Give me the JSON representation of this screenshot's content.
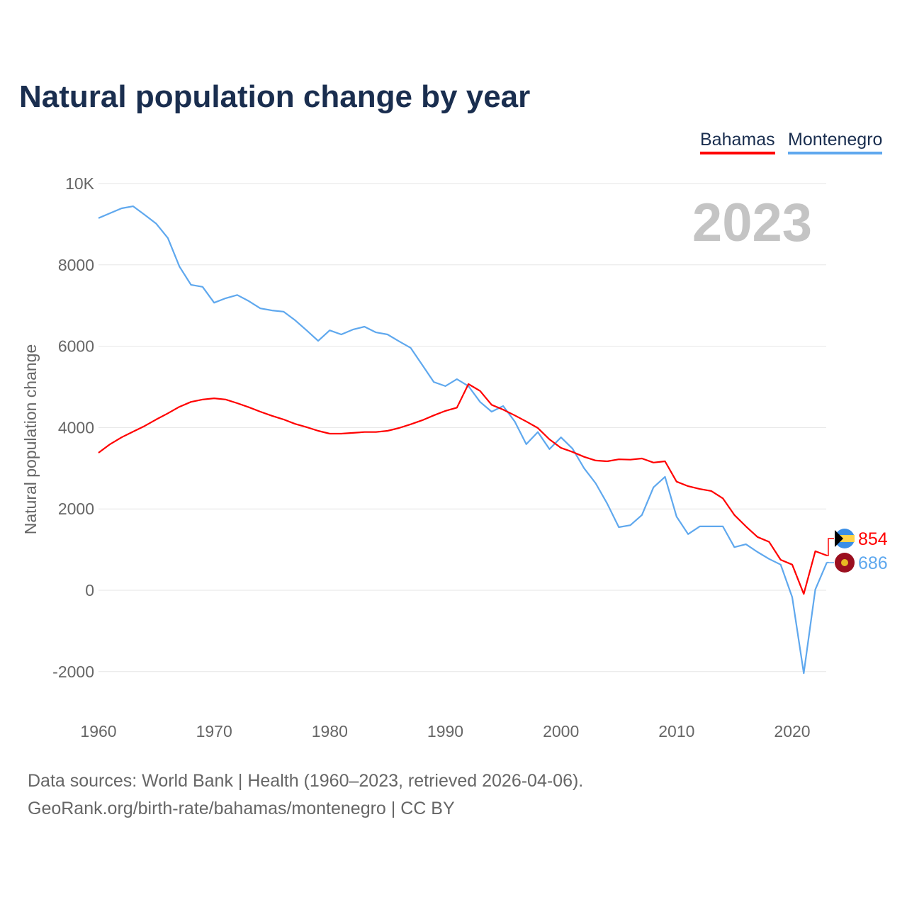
{
  "title": "Natural population change by year",
  "legend": [
    {
      "name": "Bahamas",
      "color": "#ff0000"
    },
    {
      "name": "Montenegro",
      "color": "#5fa8ee"
    }
  ],
  "sources": {
    "line1": "Data sources: World Bank | Health (1960–2023, retrieved 2026-04-06).",
    "line2": "GeoRank.org/birth-rate/bahamas/montenegro | CC BY"
  },
  "chart_data": {
    "type": "line",
    "title": "Natural population change by year",
    "year_label": "2023",
    "xlabel": "",
    "ylabel": "Natural population change",
    "xlim": [
      1960,
      2023
    ],
    "ylim": [
      -2000,
      10000
    ],
    "x_ticks": [
      "1960",
      "1970",
      "1980",
      "1990",
      "2000",
      "2010",
      "2020"
    ],
    "y_ticks": [
      {
        "v": -2000,
        "label": "-2000"
      },
      {
        "v": 0,
        "label": "0"
      },
      {
        "v": 2000,
        "label": "2000"
      },
      {
        "v": 4000,
        "label": "4000"
      },
      {
        "v": 6000,
        "label": "6000"
      },
      {
        "v": 8000,
        "label": "8000"
      },
      {
        "v": 10000,
        "label": "10K"
      }
    ],
    "grid": true,
    "legend_position": "top-right",
    "x_start": 1960,
    "series": [
      {
        "name": "Bahamas",
        "color": "#ff0000",
        "end_label": "854",
        "values": [
          3380,
          3590,
          3760,
          3900,
          4040,
          4200,
          4350,
          4510,
          4630,
          4690,
          4720,
          4690,
          4600,
          4500,
          4390,
          4290,
          4200,
          4090,
          4010,
          3920,
          3850,
          3850,
          3870,
          3890,
          3890,
          3920,
          3990,
          4080,
          4180,
          4300,
          4410,
          4490,
          5070,
          4900,
          4560,
          4440,
          4300,
          4150,
          3990,
          3710,
          3500,
          3400,
          3280,
          3190,
          3170,
          3220,
          3210,
          3240,
          3140,
          3170,
          2670,
          2560,
          2490,
          2440,
          2260,
          1850,
          1570,
          1310,
          1190,
          750,
          630,
          -90,
          960,
          854
        ]
      },
      {
        "name": "Montenegro",
        "color": "#5fa8ee",
        "end_label": "686",
        "values": [
          9150,
          9270,
          9390,
          9440,
          9230,
          9010,
          8660,
          7960,
          7510,
          7460,
          7070,
          7180,
          7260,
          7110,
          6930,
          6880,
          6850,
          6640,
          6390,
          6130,
          6390,
          6290,
          6410,
          6480,
          6340,
          6290,
          6120,
          5960,
          5540,
          5120,
          5020,
          5190,
          5020,
          4630,
          4390,
          4530,
          4150,
          3590,
          3890,
          3470,
          3760,
          3480,
          3000,
          2630,
          2130,
          1550,
          1600,
          1850,
          2530,
          2790,
          1810,
          1380,
          1570,
          1570,
          1570,
          1060,
          1130,
          940,
          770,
          630,
          -170,
          -2040,
          20,
          686
        ]
      }
    ]
  }
}
